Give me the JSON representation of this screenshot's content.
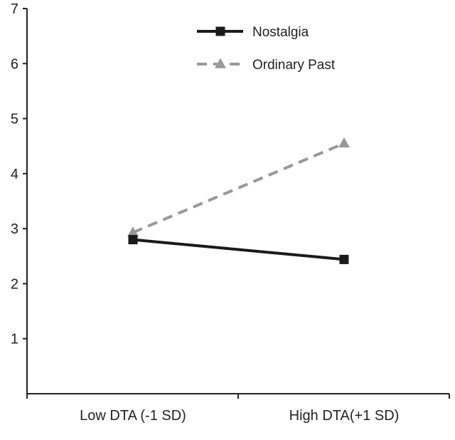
{
  "chart_data": {
    "type": "line",
    "title": "",
    "xlabel": "",
    "ylabel": "",
    "categories": [
      "Low DTA (-1 SD)",
      "High DTA(+1 SD)"
    ],
    "ylim": [
      0,
      7
    ],
    "yticks": [
      "1",
      "2",
      "3",
      "4",
      "5",
      "6",
      "7"
    ],
    "grid": false,
    "legend_position": "top-right",
    "series": [
      {
        "name": "Nostalgia",
        "values": [
          2.8,
          2.44
        ],
        "color": "#1a1a1a",
        "line_style": "solid",
        "marker": "square"
      },
      {
        "name": "Ordinary Past",
        "values": [
          2.93,
          4.55
        ],
        "color": "#999999",
        "line_style": "dashed",
        "marker": "triangle"
      }
    ]
  }
}
